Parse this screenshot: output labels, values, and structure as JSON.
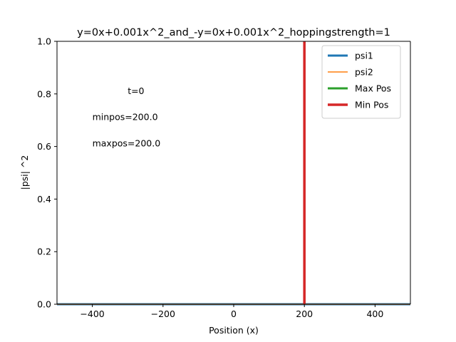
{
  "chart_data": {
    "type": "line",
    "title": "y=0x+0.001x^2_and_-y=0x+0.001x^2_hoppingstrength=1",
    "xlabel": "Position (x)",
    "ylabel": "|psi| ^2",
    "xlim": [
      -500,
      500
    ],
    "ylim": [
      0,
      1.0
    ],
    "xticks": [
      -400,
      -200,
      0,
      200,
      400
    ],
    "xtick_labels": [
      "−400",
      "−200",
      "0",
      "200",
      "400"
    ],
    "yticks": [
      0.0,
      0.2,
      0.4,
      0.6,
      0.8,
      1.0
    ],
    "ytick_labels": [
      "0.0",
      "0.2",
      "0.4",
      "0.6",
      "0.8",
      "1.0"
    ],
    "grid": false,
    "legend_position": "top-right",
    "series": [
      {
        "name": "psi1",
        "color": "#1f77b4",
        "kind": "curve",
        "x": [
          -500,
          500
        ],
        "y": [
          0,
          0
        ]
      },
      {
        "name": "psi2",
        "color": "#ff7f0e",
        "kind": "curve",
        "x": [
          -500,
          500
        ],
        "y": [
          0,
          0
        ]
      },
      {
        "name": "Max Pos",
        "color": "#2ca02c",
        "kind": "vline",
        "x": [
          200,
          200
        ],
        "y": [
          0,
          1.0
        ]
      },
      {
        "name": "Min Pos",
        "color": "#d62728",
        "kind": "vline",
        "x": [
          200,
          200
        ],
        "y": [
          0,
          1.0
        ]
      }
    ],
    "annotations": [
      {
        "text": "t=0",
        "x": -300,
        "y": 0.8
      },
      {
        "text": "minpos=200.0",
        "x": -400,
        "y": 0.7
      },
      {
        "text": "maxpos=200.0",
        "x": -400,
        "y": 0.6
      }
    ]
  }
}
